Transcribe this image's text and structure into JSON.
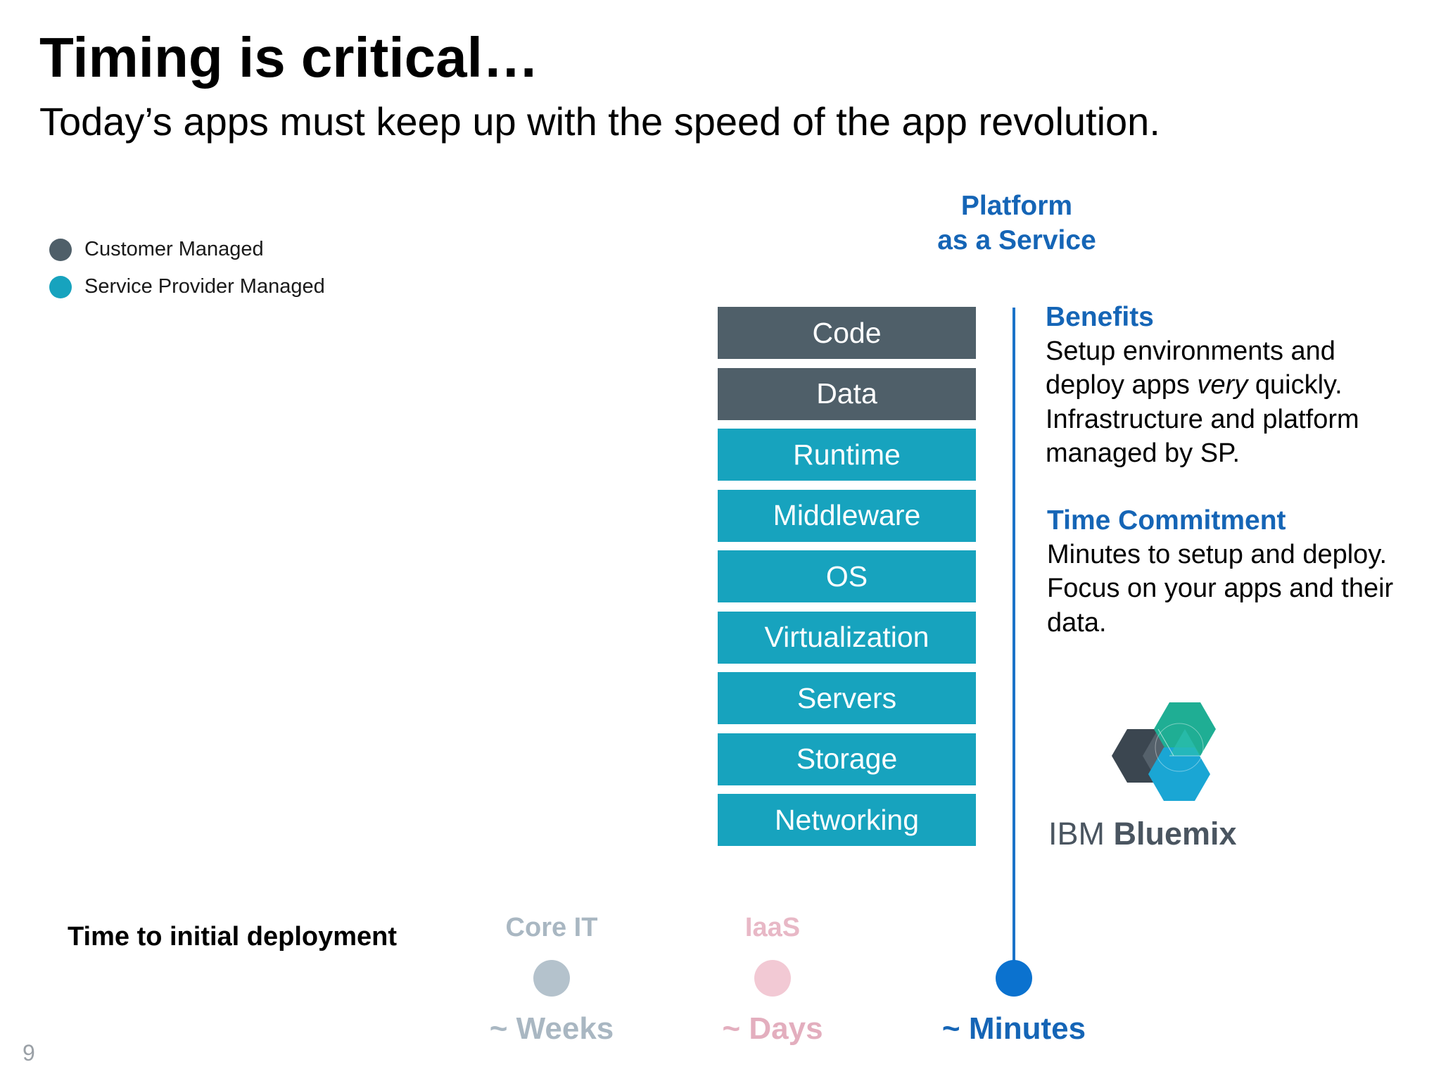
{
  "slide": {
    "title": "Timing is critical…",
    "subtitle": "Today’s apps must keep up with the speed of the app revolution.",
    "page_number": "9"
  },
  "legend": [
    {
      "label": "Customer Managed",
      "color": "#4f5f69"
    },
    {
      "label": "Service Provider Managed",
      "color": "#17a3be"
    }
  ],
  "paas": {
    "heading_line1": "Platform",
    "heading_line2": "as a Service",
    "heading_color": "#1565b6"
  },
  "stack": [
    {
      "label": "Code",
      "managed_by": "customer",
      "color": "#4f5f69"
    },
    {
      "label": "Data",
      "managed_by": "customer",
      "color": "#4f5f69"
    },
    {
      "label": "Runtime",
      "managed_by": "provider",
      "color": "#17a3be"
    },
    {
      "label": "Middleware",
      "managed_by": "provider",
      "color": "#17a3be"
    },
    {
      "label": "OS",
      "managed_by": "provider",
      "color": "#17a3be"
    },
    {
      "label": "Virtualization",
      "managed_by": "provider",
      "color": "#17a3be"
    },
    {
      "label": "Servers",
      "managed_by": "provider",
      "color": "#17a3be"
    },
    {
      "label": "Storage",
      "managed_by": "provider",
      "color": "#17a3be"
    },
    {
      "label": "Networking",
      "managed_by": "provider",
      "color": "#17a3be"
    }
  ],
  "benefits": {
    "heading": "Benefits",
    "line1": "Setup environments and",
    "line2_before": "deploy apps ",
    "line2_em": "very",
    "line2_after": " quickly.",
    "line3": "Infrastructure and platform",
    "line4": "managed by SP."
  },
  "time_commitment": {
    "heading": "Time Commitment",
    "line1": "Minutes to setup and deploy.",
    "line2": "Focus on your apps and their",
    "line3": "data."
  },
  "logo": {
    "brand": "IBM",
    "product": "Bluemix",
    "icon": "bluemix-hexagon-logo-icon"
  },
  "deployment": {
    "label": "Time to initial deployment",
    "milestones": [
      {
        "name": "Core IT",
        "time": "~ Weeks",
        "color": "#b4c2cc",
        "text_color": "#a9b7c2"
      },
      {
        "name": "IaaS",
        "time": "~ Days",
        "color": "#f2c9d4",
        "text_color": "#e3aebe"
      },
      {
        "name": "",
        "time": "~ Minutes",
        "color": "#0b72cf",
        "text_color": "#1565b6"
      }
    ]
  }
}
